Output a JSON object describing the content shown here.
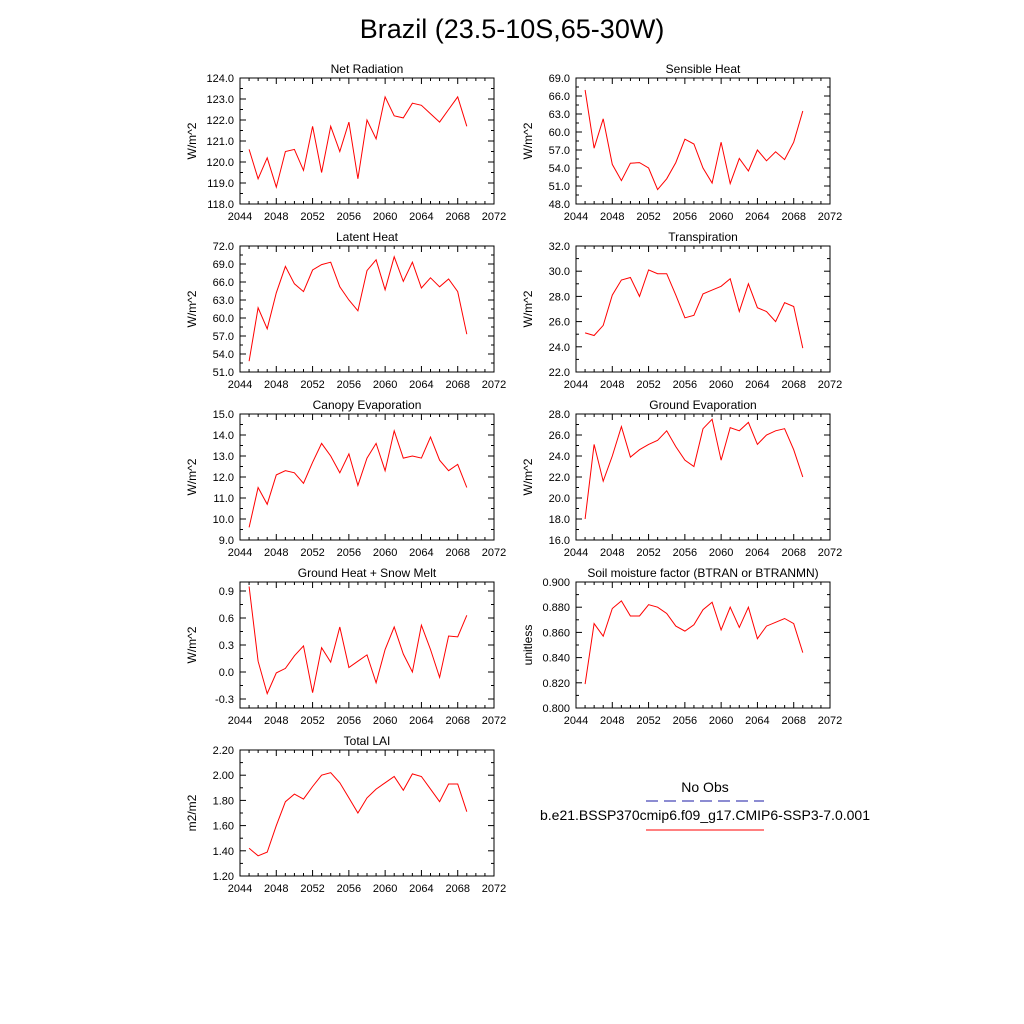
{
  "title": "Brazil (23.5-10S,65-30W)",
  "colors": {
    "model": "#ff0000",
    "obs": "#1a1aa6"
  },
  "legend": {
    "obs_label": "No Obs",
    "model_label": "b.e21.BSSP370cmip6.f09_g17.CMIP6-SSP3-7.0.001"
  },
  "x_tick_labels": [
    "2044",
    "2048",
    "2052",
    "2056",
    "2060",
    "2064",
    "2068",
    "2072"
  ],
  "chart_data": [
    {
      "type": "line",
      "title": "Net Radiation",
      "ylabel": "W/m^2",
      "xlim": [
        2044,
        2072
      ],
      "ylim": [
        118.0,
        124.0
      ],
      "yticks": [
        "118.0",
        "119.0",
        "120.0",
        "121.0",
        "122.0",
        "123.0",
        "124.0"
      ],
      "x": [
        2045,
        2046,
        2047,
        2048,
        2049,
        2050,
        2051,
        2052,
        2053,
        2054,
        2055,
        2056,
        2057,
        2058,
        2059,
        2060,
        2061,
        2062,
        2063,
        2064,
        2065,
        2066,
        2067,
        2068,
        2069
      ],
      "series": [
        {
          "values": [
            120.6,
            119.2,
            120.2,
            118.8,
            120.5,
            120.6,
            119.6,
            121.7,
            119.5,
            121.7,
            120.5,
            121.9,
            119.2,
            122.0,
            121.1,
            123.1,
            122.2,
            122.1,
            122.8,
            122.7,
            122.3,
            121.9,
            122.5,
            123.1,
            121.7
          ]
        }
      ]
    },
    {
      "type": "line",
      "title": "Sensible Heat",
      "ylabel": "W/m^2",
      "xlim": [
        2044,
        2072
      ],
      "ylim": [
        48.0,
        69.0
      ],
      "yticks": [
        "48.0",
        "51.0",
        "54.0",
        "57.0",
        "60.0",
        "63.0",
        "66.0",
        "69.0"
      ],
      "x": [
        2045,
        2046,
        2047,
        2048,
        2049,
        2050,
        2051,
        2052,
        2053,
        2054,
        2055,
        2056,
        2057,
        2058,
        2059,
        2060,
        2061,
        2062,
        2063,
        2064,
        2065,
        2066,
        2067,
        2068,
        2069
      ],
      "series": [
        {
          "values": [
            67.0,
            57.3,
            62.2,
            54.6,
            51.9,
            54.8,
            54.9,
            54.0,
            50.4,
            52.2,
            54.9,
            58.8,
            58.0,
            54.0,
            51.5,
            58.3,
            51.4,
            55.6,
            53.5,
            57.0,
            55.2,
            56.7,
            55.4,
            58.3,
            63.5
          ]
        }
      ]
    },
    {
      "type": "line",
      "title": "Latent Heat",
      "ylabel": "W/m^2",
      "xlim": [
        2044,
        2072
      ],
      "ylim": [
        51.0,
        72.0
      ],
      "yticks": [
        "51.0",
        "54.0",
        "57.0",
        "60.0",
        "63.0",
        "66.0",
        "69.0",
        "72.0"
      ],
      "x": [
        2045,
        2046,
        2047,
        2048,
        2049,
        2050,
        2051,
        2052,
        2053,
        2054,
        2055,
        2056,
        2057,
        2058,
        2059,
        2060,
        2061,
        2062,
        2063,
        2064,
        2065,
        2066,
        2067,
        2068,
        2069
      ],
      "series": [
        {
          "values": [
            52.8,
            61.7,
            58.2,
            64.2,
            68.6,
            65.7,
            64.4,
            68.0,
            68.9,
            69.3,
            65.2,
            63.0,
            61.2,
            67.9,
            69.7,
            64.7,
            70.2,
            66.1,
            69.3,
            65.0,
            66.7,
            65.2,
            66.5,
            64.4,
            57.3
          ]
        }
      ]
    },
    {
      "type": "line",
      "title": "Transpiration",
      "ylabel": "W/m^2",
      "xlim": [
        2044,
        2072
      ],
      "ylim": [
        22.0,
        32.0
      ],
      "yticks": [
        "22.0",
        "24.0",
        "26.0",
        "28.0",
        "30.0",
        "32.0"
      ],
      "x": [
        2045,
        2046,
        2047,
        2048,
        2049,
        2050,
        2051,
        2052,
        2053,
        2054,
        2055,
        2056,
        2057,
        2058,
        2059,
        2060,
        2061,
        2062,
        2063,
        2064,
        2065,
        2066,
        2067,
        2068,
        2069
      ],
      "series": [
        {
          "values": [
            25.1,
            24.9,
            25.7,
            28.1,
            29.3,
            29.5,
            28.0,
            30.1,
            29.8,
            29.8,
            28.1,
            26.3,
            26.5,
            28.2,
            28.5,
            28.8,
            29.4,
            26.8,
            29.0,
            27.1,
            26.8,
            26.0,
            27.5,
            27.2,
            23.9
          ]
        }
      ]
    },
    {
      "type": "line",
      "title": "Canopy Evaporation",
      "ylabel": "W/m^2",
      "xlim": [
        2044,
        2072
      ],
      "ylim": [
        9.0,
        15.0
      ],
      "yticks": [
        "9.0",
        "10.0",
        "11.0",
        "12.0",
        "13.0",
        "14.0",
        "15.0"
      ],
      "x": [
        2045,
        2046,
        2047,
        2048,
        2049,
        2050,
        2051,
        2052,
        2053,
        2054,
        2055,
        2056,
        2057,
        2058,
        2059,
        2060,
        2061,
        2062,
        2063,
        2064,
        2065,
        2066,
        2067,
        2068,
        2069
      ],
      "series": [
        {
          "values": [
            9.6,
            11.5,
            10.7,
            12.1,
            12.3,
            12.2,
            11.7,
            12.7,
            13.6,
            13.0,
            12.2,
            13.1,
            11.6,
            12.9,
            13.6,
            12.3,
            14.2,
            12.9,
            13.0,
            12.9,
            13.9,
            12.8,
            12.3,
            12.6,
            11.5
          ]
        }
      ]
    },
    {
      "type": "line",
      "title": "Ground Evaporation",
      "ylabel": "W/m^2",
      "xlim": [
        2044,
        2072
      ],
      "ylim": [
        16.0,
        28.0
      ],
      "yticks": [
        "16.0",
        "18.0",
        "20.0",
        "22.0",
        "24.0",
        "26.0",
        "28.0"
      ],
      "x": [
        2045,
        2046,
        2047,
        2048,
        2049,
        2050,
        2051,
        2052,
        2053,
        2054,
        2055,
        2056,
        2057,
        2058,
        2059,
        2060,
        2061,
        2062,
        2063,
        2064,
        2065,
        2066,
        2067,
        2068,
        2069
      ],
      "series": [
        {
          "values": [
            18.0,
            25.1,
            21.6,
            24.0,
            26.8,
            23.9,
            24.6,
            25.1,
            25.5,
            26.4,
            24.9,
            23.6,
            23.0,
            26.6,
            27.5,
            23.6,
            26.7,
            26.4,
            27.2,
            25.1,
            26.0,
            26.4,
            26.6,
            24.6,
            22.0
          ]
        }
      ]
    },
    {
      "type": "line",
      "title": "Ground Heat + Snow Melt",
      "ylabel": "W/m^2",
      "xlim": [
        2044,
        2072
      ],
      "ylim": [
        -0.4,
        1.0
      ],
      "yticks": [
        "-0.3",
        "0.0",
        "0.3",
        "0.6",
        "0.9"
      ],
      "ytick_values": [
        -0.3,
        0.0,
        0.3,
        0.6,
        0.9
      ],
      "x": [
        2045,
        2046,
        2047,
        2048,
        2049,
        2050,
        2051,
        2052,
        2053,
        2054,
        2055,
        2056,
        2057,
        2058,
        2059,
        2060,
        2061,
        2062,
        2063,
        2064,
        2065,
        2066,
        2067,
        2068,
        2069
      ],
      "series": [
        {
          "values": [
            0.95,
            0.12,
            -0.24,
            -0.01,
            0.04,
            0.18,
            0.29,
            -0.23,
            0.27,
            0.11,
            0.5,
            0.05,
            0.12,
            0.19,
            -0.12,
            0.25,
            0.5,
            0.2,
            0.0,
            0.52,
            0.25,
            -0.06,
            0.4,
            0.39,
            0.63
          ]
        }
      ]
    },
    {
      "type": "line",
      "title": "Soil moisture factor (BTRAN or BTRANMN)",
      "ylabel": "unitless",
      "xlim": [
        2044,
        2072
      ],
      "ylim": [
        0.8,
        0.9
      ],
      "yticks": [
        "0.800",
        "0.820",
        "0.840",
        "0.860",
        "0.880",
        "0.900"
      ],
      "x": [
        2045,
        2046,
        2047,
        2048,
        2049,
        2050,
        2051,
        2052,
        2053,
        2054,
        2055,
        2056,
        2057,
        2058,
        2059,
        2060,
        2061,
        2062,
        2063,
        2064,
        2065,
        2066,
        2067,
        2068,
        2069
      ],
      "series": [
        {
          "values": [
            0.819,
            0.867,
            0.857,
            0.879,
            0.885,
            0.873,
            0.873,
            0.882,
            0.88,
            0.875,
            0.865,
            0.861,
            0.866,
            0.878,
            0.884,
            0.862,
            0.88,
            0.864,
            0.88,
            0.855,
            0.865,
            0.868,
            0.871,
            0.867,
            0.844
          ]
        }
      ]
    },
    {
      "type": "line",
      "title": "Total LAI",
      "ylabel": "m2/m2",
      "xlim": [
        2044,
        2072
      ],
      "ylim": [
        1.2,
        2.2
      ],
      "yticks": [
        "1.20",
        "1.40",
        "1.60",
        "1.80",
        "2.00",
        "2.20"
      ],
      "x": [
        2045,
        2046,
        2047,
        2048,
        2049,
        2050,
        2051,
        2052,
        2053,
        2054,
        2055,
        2056,
        2057,
        2058,
        2059,
        2060,
        2061,
        2062,
        2063,
        2064,
        2065,
        2066,
        2067,
        2068,
        2069
      ],
      "series": [
        {
          "values": [
            1.42,
            1.36,
            1.39,
            1.6,
            1.79,
            1.85,
            1.81,
            1.91,
            2.0,
            2.02,
            1.94,
            1.82,
            1.7,
            1.82,
            1.89,
            1.94,
            1.99,
            1.88,
            2.01,
            1.99,
            1.89,
            1.79,
            1.93,
            1.93,
            1.71
          ]
        }
      ]
    }
  ]
}
